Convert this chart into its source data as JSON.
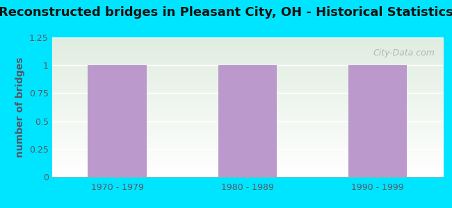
{
  "title": "Reconstructed bridges in Pleasant City, OH - Historical Statistics",
  "categories": [
    "1970 - 1979",
    "1980 - 1989",
    "1990 - 1999"
  ],
  "values": [
    1,
    1,
    1
  ],
  "bar_color": "#bb99cc",
  "ylabel": "number of bridges",
  "ylim": [
    0,
    1.25
  ],
  "yticks": [
    0,
    0.25,
    0.5,
    0.75,
    1,
    1.25
  ],
  "background_outer": "#00e5ff",
  "title_fontsize": 13,
  "ylabel_fontsize": 10,
  "tick_fontsize": 9,
  "watermark": "City-Data.com",
  "bar_width": 0.45,
  "ylabel_color": "#555566",
  "tick_color": "#555566",
  "title_color": "#111111"
}
